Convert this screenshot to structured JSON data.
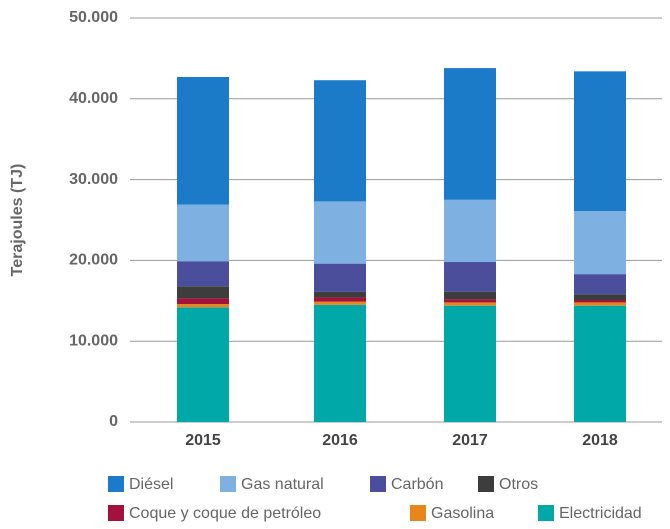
{
  "chart_data": {
    "type": "stacked_bar",
    "ylabel": "Terajoules (TJ)",
    "categories": [
      "2015",
      "2016",
      "2017",
      "2018"
    ],
    "series": [
      {
        "name": "Diésel",
        "color": "#1b7bc9",
        "values": [
          15.8,
          15.0,
          16.3,
          17.3
        ]
      },
      {
        "name": "Gas natural",
        "color": "#7eb1e1",
        "values": [
          7.0,
          7.7,
          7.7,
          7.8
        ]
      },
      {
        "name": "Carbón",
        "color": "#4b4e9b",
        "values": [
          3.1,
          3.5,
          3.7,
          2.5
        ]
      },
      {
        "name": "Otros",
        "color": "#3d3d3d",
        "values": [
          1.5,
          0.7,
          0.9,
          0.7
        ]
      },
      {
        "name": "Coque y coque de petróleo",
        "color": "#a3123c",
        "values": [
          0.7,
          0.5,
          0.4,
          0.3
        ]
      },
      {
        "name": "Gasolina",
        "color": "#e8861c",
        "values": [
          0.4,
          0.4,
          0.4,
          0.4
        ]
      },
      {
        "name": "Electricidad",
        "color": "#00a9a8",
        "values": [
          14.2,
          14.5,
          14.4,
          14.4
        ]
      }
    ],
    "ylim": [
      0,
      50
    ],
    "yticks": [
      0,
      {
        "value": 10,
        "label": "10.000"
      },
      {
        "value": 20,
        "label": "20.000"
      },
      {
        "value": 30,
        "label": "30.000"
      },
      {
        "value": 40,
        "label": "40.000"
      },
      {
        "value": 50,
        "label": "50.000"
      }
    ],
    "grid": true
  }
}
